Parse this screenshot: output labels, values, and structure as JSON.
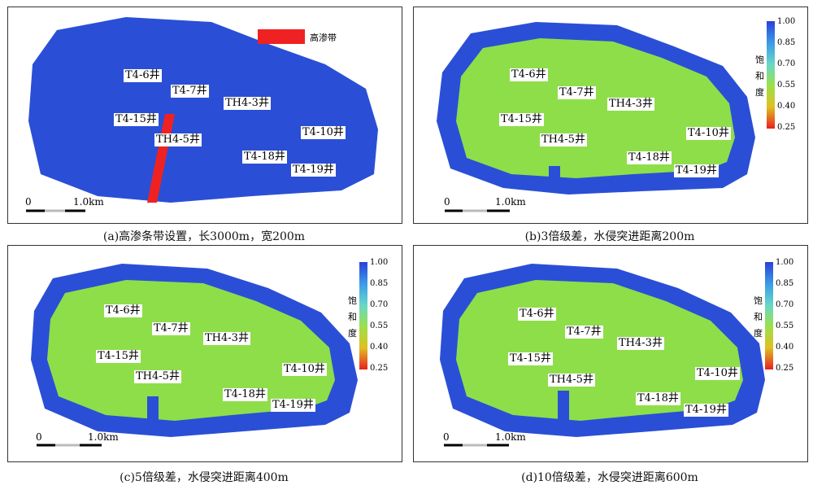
{
  "panels": [
    {
      "id": "a",
      "caption": "(a)高渗条带设置，长3000m，宽200m"
    },
    {
      "id": "b",
      "caption": "(b)3倍级差，水侵突进距离200m"
    },
    {
      "id": "c",
      "caption": "(c)5倍级差，水侵突进距离400m"
    },
    {
      "id": "d",
      "caption": "(d)10倍级差，水侵突进距离600m"
    }
  ],
  "wells": [
    "T4-6井",
    "T4-7井",
    "TH4-3井",
    "T4-15井",
    "TH4-5井",
    "T4-10井",
    "T4-18井",
    "T4-19井"
  ],
  "legend": {
    "title_chars": [
      "饱",
      "和",
      "度"
    ],
    "ticks": [
      "1.00",
      "0.85",
      "0.70",
      "0.55",
      "0.40",
      "0.25"
    ]
  },
  "scale": {
    "start": "0",
    "end": "1.0km"
  },
  "high_perm_label": "高渗带",
  "colors": {
    "water": "#2a4fd6",
    "oil": "#8ede4a",
    "band": "#ee2222"
  }
}
